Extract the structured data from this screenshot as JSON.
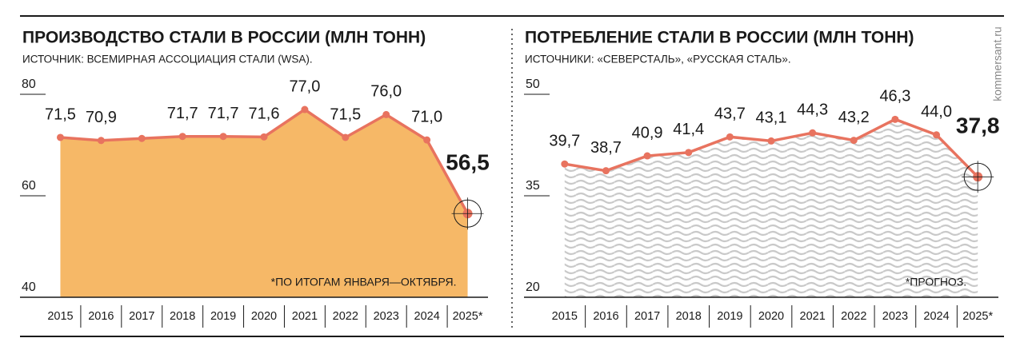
{
  "watermark": "kommersant.ru",
  "chart_data": [
    {
      "type": "area",
      "title": "ПРОИЗВОДСТВО СТАЛИ В РОССИИ (МЛН ТОНН)",
      "subtitle": "ИСТОЧНИК: ВСЕМИРНАЯ АССОЦИАЦИЯ СТАЛИ (WSA).",
      "categories": [
        "2015",
        "2016",
        "2017",
        "2018",
        "2019",
        "2020",
        "2021",
        "2022",
        "2023",
        "2024",
        "2025*"
      ],
      "values": [
        71.5,
        70.9,
        71.3,
        71.7,
        71.7,
        71.6,
        77.0,
        71.5,
        76.0,
        71.0,
        56.5
      ],
      "value_labels": [
        "71,5",
        "70,9",
        null,
        "71,7",
        "71,7",
        "71,6",
        "77,0",
        "71,5",
        "76,0",
        "71,0",
        "56,5"
      ],
      "ylim": [
        40,
        80
      ],
      "yticks": [
        40,
        60,
        80
      ],
      "note": "*ПО ИТОГАМ ЯНВАРЯ—ОКТЯБРЯ.",
      "area_color": "#f6b867",
      "line_color": "#e8735f",
      "area_pattern": "none",
      "highlight_last": true
    },
    {
      "type": "area",
      "title": "ПОТРЕБЛЕНИЕ СТАЛИ В РОССИИ (МЛН ТОНН)",
      "subtitle": "ИСТОЧНИКИ: «СЕВЕРСТАЛЬ», «РУССКАЯ СТАЛЬ».",
      "categories": [
        "2015",
        "2016",
        "2017",
        "2018",
        "2019",
        "2020",
        "2021",
        "2022",
        "2023",
        "2024",
        "2025*"
      ],
      "values": [
        39.7,
        38.7,
        40.9,
        41.4,
        43.7,
        43.1,
        44.3,
        43.2,
        46.3,
        44.0,
        37.8
      ],
      "value_labels": [
        "39,7",
        "38,7",
        "40,9",
        "41,4",
        "43,7",
        "43,1",
        "44,3",
        "43,2",
        "46,3",
        "44,0",
        "37,8"
      ],
      "ylim": [
        20,
        50
      ],
      "yticks": [
        20,
        35,
        50
      ],
      "note": "*ПРОГНОЗ.",
      "area_color": "#c9c9c9",
      "line_color": "#e8735f",
      "area_pattern": "waves",
      "highlight_last": true
    }
  ]
}
